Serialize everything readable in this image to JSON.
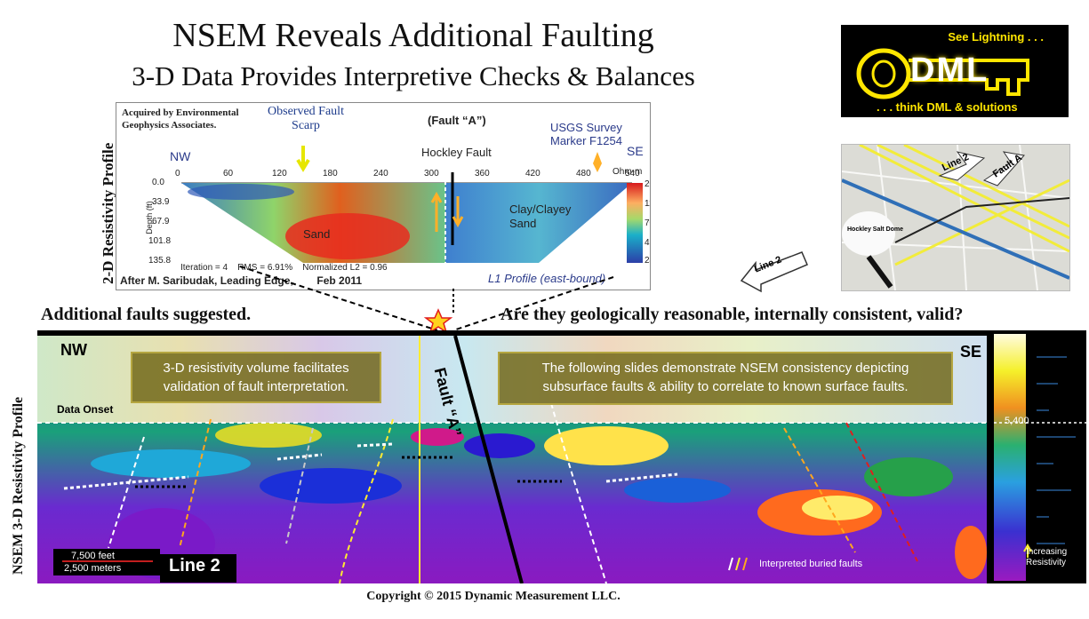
{
  "header": {
    "title": "NSEM Reveals Additional Faulting",
    "subtitle": "3-D Data Provides Interpretive Checks & Balances"
  },
  "logo": {
    "tagline_top": "See Lightning . . .",
    "name": "DML",
    "tagline_bottom": ". . . think DML & solutions"
  },
  "map": {
    "line_label": "Line 2",
    "fault_label": "Fault A",
    "dome_label": "Hockley Salt Dome"
  },
  "profile_2d": {
    "side_title": "2-D Resistivity Profile",
    "credit": "Acquired by Environmental Geophysics Associates.",
    "observed": "Observed Fault Scarp",
    "fault_a": "(Fault “A”)",
    "hockley": "Hockley Fault",
    "usgs": "USGS Survey Marker F1254",
    "nw": "NW",
    "se": "SE",
    "x_ticks": [
      "0",
      "60",
      "120",
      "180",
      "240",
      "300",
      "360",
      "420",
      "480",
      "540"
    ],
    "depth_label": "Depth (ft)",
    "depth_ticks": [
      "0.0",
      "33.9",
      "67.9",
      "101.8",
      "135.8"
    ],
    "unit": "Ohm-m",
    "color_ticks": [
      "200",
      "118",
      "70",
      "41",
      "24"
    ],
    "sand": "Sand",
    "clay": "Clay/Clayey Sand",
    "stats": "Iteration = 4    RMS = 6.91%    Normalized L2 = 0.96",
    "after": "After M. Saribudak, Leading Edge,        Feb 2011",
    "l1": "L1 Profile (east-bound)"
  },
  "line2_arrow": "Line 2",
  "mid_left": "Additional faults suggested.",
  "mid_right": "Are they geologically reasonable, internally consistent, valid?",
  "section_3d": {
    "side_title": "NSEM 3-D Resistivity Profile",
    "nw": "NW",
    "se": "SE",
    "data_onset": "Data Onset",
    "fault_a": "Fault “A”",
    "callout_left": "3-D resistivity volume facilitates validation of fault interpretation.",
    "callout_right": "The following  slides demonstrate NSEM consistency depicting subsurface faults & ability to correlate to known surface faults.",
    "scale_feet": "7,500 feet",
    "scale_meters": "2,500 meters",
    "line_label": "Line 2",
    "legend": "Interpreted buried faults",
    "increasing": "Increasing Resistivity",
    "depth_marker": "5,400"
  },
  "colors": {
    "fault_a_line": "#000000",
    "callout_fill": "#6e6414",
    "logo_yellow": "#ffe600"
  },
  "copyright": "Copyright  © 2015 Dynamic Measurement LLC."
}
